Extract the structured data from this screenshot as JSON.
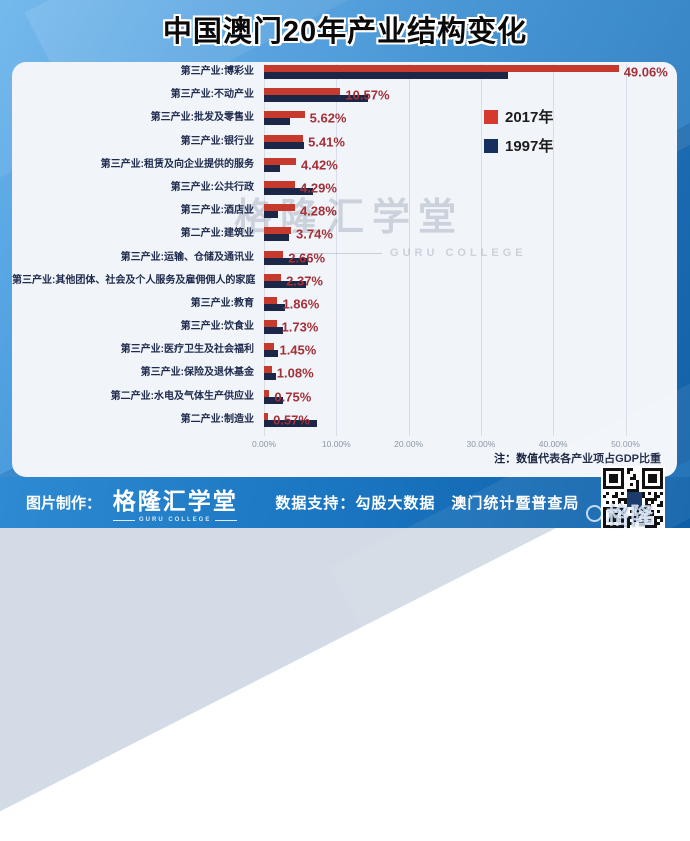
{
  "title": "中国澳门20年产业结构变化",
  "chart_data": {
    "type": "bar",
    "orientation": "horizontal",
    "title": "中国澳门20年产业结构变化",
    "xlabel": "",
    "ylabel": "",
    "unit": "% of GDP",
    "xlim": [
      0,
      52
    ],
    "grid": true,
    "legend_position": "center-right-upper",
    "x_tick_values": [
      0,
      10,
      20,
      30,
      40,
      50
    ],
    "x_tick_labels": [
      "0.00%",
      "10.00%",
      "20.00%",
      "30.00%",
      "40.00%",
      "50.00%"
    ],
    "note": "注：数值代表各产业项占GDP比重",
    "categories": [
      "第三产业:博彩业",
      "第三产业:不动产业",
      "第三产业:批发及零售业",
      "第三产业:银行业",
      "第三产业:租赁及向企业提供的服务",
      "第三产业:公共行政",
      "第三产业:酒店业",
      "第二产业:建筑业",
      "第三产业:运输、仓储及通讯业",
      "第三产业:其他团体、社会及个人服务及雇佣佣人的家庭",
      "第三产业:教育",
      "第三产业:饮食业",
      "第三产业:医疗卫生及社会福利",
      "第三产业:保险及退休基金",
      "第二产业:水电及气体生产供应业",
      "第二产业:制造业"
    ],
    "series": [
      {
        "name": "2017年",
        "color": "#c63a2e",
        "values": [
          49.06,
          10.57,
          5.62,
          5.41,
          4.42,
          4.29,
          4.28,
          3.74,
          2.66,
          2.37,
          1.86,
          1.73,
          1.45,
          1.08,
          0.75,
          0.57
        ],
        "labels": [
          "49.06%",
          "10.57%",
          "5.62%",
          "5.41%",
          "4.42%",
          "4.29%",
          "4.28%",
          "3.74%",
          "2.66%",
          "2.37%",
          "1.86%",
          "1.73%",
          "1.45%",
          "1.08%",
          "0.75%",
          "0.57%"
        ]
      },
      {
        "name": "1997年",
        "color": "#1c2747",
        "values": [
          33.7,
          14.4,
          3.6,
          5.6,
          2.2,
          6.8,
          1.9,
          3.5,
          6.1,
          5.8,
          2.9,
          2.6,
          2.0,
          1.7,
          2.6,
          7.3
        ]
      }
    ]
  },
  "watermark": {
    "text": "格隆汇学堂",
    "subtext": "GURU COLLEGE"
  },
  "footer": {
    "credit_label": "图片制作：",
    "logo_text": "格隆汇学堂",
    "logo_subtext": "GURU COLLEGE",
    "support_text": "数据支持：勾股大数据　澳门统计暨普查局",
    "qr_watermark": "格隆"
  }
}
